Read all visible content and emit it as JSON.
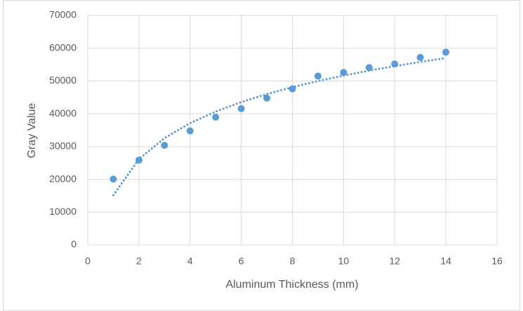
{
  "chart_data": {
    "type": "scatter",
    "xlabel": "Aluminum Thickness (mm)",
    "ylabel": "Gray Value",
    "xlim": [
      0,
      16
    ],
    "xticks": [
      0,
      2,
      4,
      6,
      8,
      10,
      12,
      14,
      16
    ],
    "ylim": [
      0,
      70000
    ],
    "yticks": [
      0,
      10000,
      20000,
      30000,
      40000,
      50000,
      60000,
      70000
    ],
    "grid": true,
    "series": [
      {
        "style": "markers",
        "color": "#5b9bd5",
        "x": [
          1,
          2,
          3,
          4,
          5,
          6,
          7,
          8,
          9,
          10,
          11,
          12,
          13,
          14
        ],
        "values": [
          20100,
          25900,
          30400,
          34800,
          39000,
          41600,
          44800,
          47600,
          51500,
          52600,
          54100,
          55200,
          57200,
          58800
        ]
      },
      {
        "style": "dotted-line",
        "color": "#5b9bd5",
        "x": [
          1,
          2,
          3,
          4,
          5,
          6,
          7,
          8,
          9,
          10,
          11,
          12,
          13,
          14
        ],
        "values": [
          15200,
          26180,
          32600,
          37160,
          40690,
          43580,
          46020,
          48140,
          50000,
          51670,
          53180,
          54560,
          55830,
          57000
        ]
      }
    ]
  }
}
